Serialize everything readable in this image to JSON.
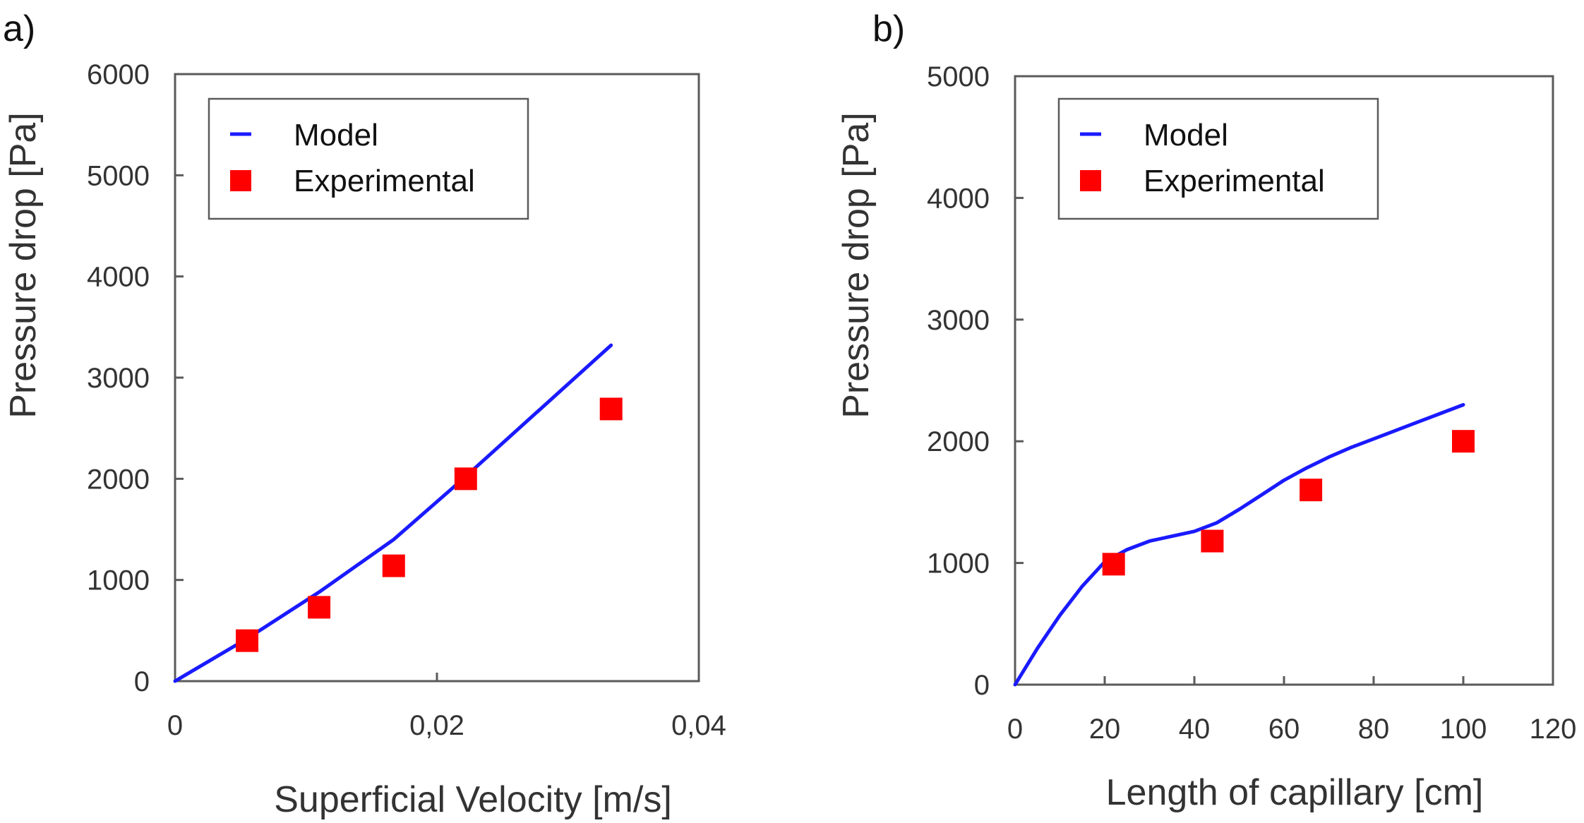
{
  "chart_data": [
    {
      "panel": "a)",
      "type": "line",
      "xlabel": "Superficial Velocity [m/s]",
      "ylabel": "Pressure drop [Pa]",
      "xlim": [
        0,
        0.04
      ],
      "ylim": [
        0,
        6000
      ],
      "x_ticks": [
        0,
        0.02,
        0.04
      ],
      "x_tick_labels": [
        "0",
        "0,02",
        "0,04"
      ],
      "y_ticks": [
        0,
        1000,
        2000,
        3000,
        4000,
        5000,
        6000
      ],
      "y_tick_labels": [
        "0",
        "1000",
        "2000",
        "3000",
        "4000",
        "5000",
        "6000"
      ],
      "grid": false,
      "legend": "top-left",
      "series": [
        {
          "name": "Model",
          "kind": "line",
          "color": "#1a1aff",
          "x": [
            0,
            0.0055,
            0.011,
            0.0167,
            0.022,
            0.0333
          ],
          "y": [
            0,
            420,
            880,
            1400,
            2000,
            3320
          ]
        },
        {
          "name": "Experimental",
          "kind": "scatter",
          "color": "#ff0000",
          "x": [
            0.0055,
            0.011,
            0.0167,
            0.0222,
            0.0333
          ],
          "y": [
            400,
            730,
            1140,
            2000,
            2690
          ]
        }
      ]
    },
    {
      "panel": "b)",
      "type": "line",
      "xlabel": "Length of capillary [cm]",
      "ylabel": "Pressure drop [Pa]",
      "xlim": [
        0,
        120
      ],
      "ylim": [
        0,
        5000
      ],
      "x_ticks": [
        0,
        20,
        40,
        60,
        80,
        100,
        120
      ],
      "x_tick_labels": [
        "0",
        "20",
        "40",
        "60",
        "80",
        "100",
        "120"
      ],
      "y_ticks": [
        0,
        1000,
        2000,
        3000,
        4000,
        5000
      ],
      "y_tick_labels": [
        "0",
        "1000",
        "2000",
        "3000",
        "4000",
        "5000"
      ],
      "grid": false,
      "legend": "top-left",
      "series": [
        {
          "name": "Model",
          "kind": "line",
          "color": "#1a1aff",
          "x": [
            0,
            5,
            10,
            15,
            20,
            25,
            30,
            35,
            40,
            45,
            50,
            55,
            60,
            65,
            70,
            75,
            80,
            85,
            90,
            95,
            100
          ],
          "y": [
            0,
            300,
            570,
            810,
            1010,
            1110,
            1180,
            1220,
            1260,
            1330,
            1440,
            1560,
            1680,
            1780,
            1870,
            1950,
            2020,
            2090,
            2160,
            2230,
            2300
          ]
        },
        {
          "name": "Experimental",
          "kind": "scatter",
          "color": "#ff0000",
          "x": [
            22,
            44,
            66,
            100
          ],
          "y": [
            990,
            1180,
            1600,
            2000
          ]
        }
      ]
    }
  ]
}
